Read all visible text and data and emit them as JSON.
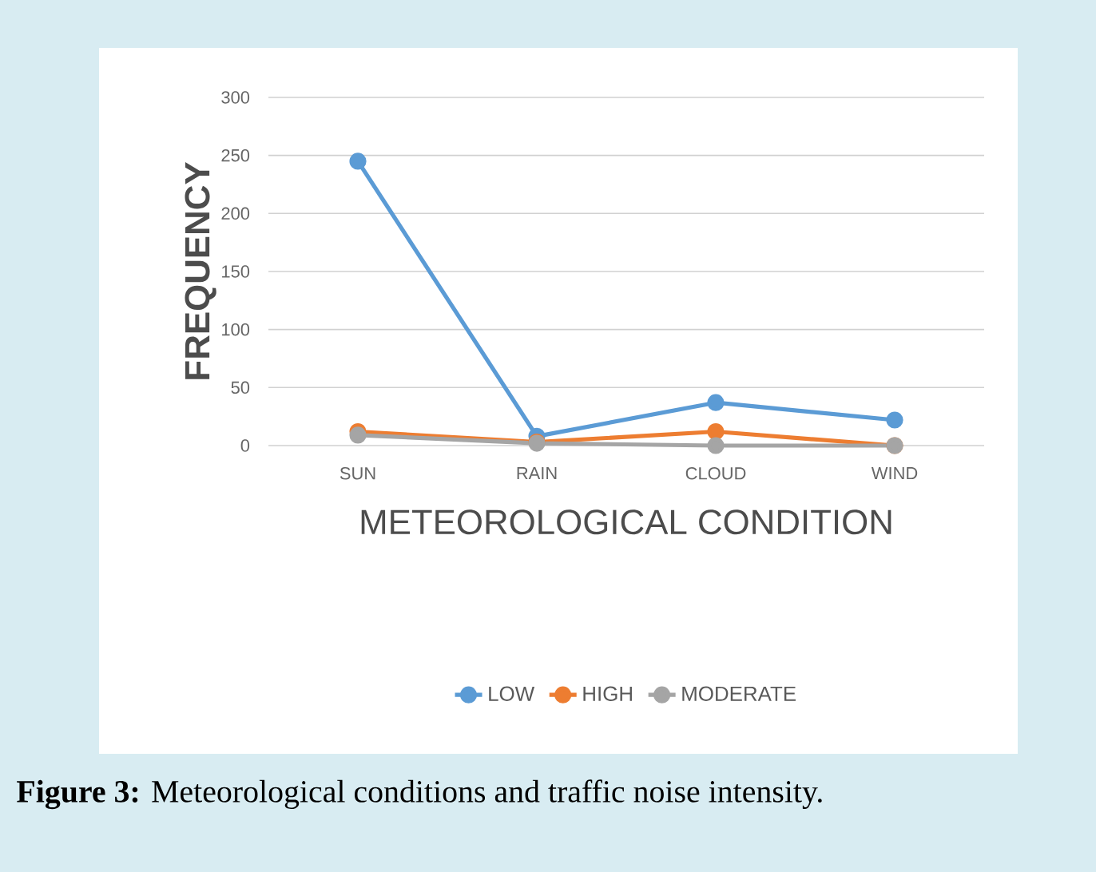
{
  "chart_data": {
    "type": "line",
    "xlabel": "METEOROLOGICAL CONDITION",
    "ylabel": "FREQUENCY",
    "categories": [
      "SUN",
      "RAIN",
      "CLOUD",
      "WIND"
    ],
    "series": [
      {
        "name": "LOW",
        "color": "#5b9bd5",
        "values": [
          245,
          8,
          37,
          22
        ]
      },
      {
        "name": "HIGH",
        "color": "#ed7d31",
        "values": [
          12,
          3,
          12,
          0
        ]
      },
      {
        "name": "MODERATE",
        "color": "#a5a5a5",
        "values": [
          9,
          2,
          0,
          0
        ]
      }
    ],
    "ylim": [
      0,
      300
    ],
    "yticks": [
      0,
      50,
      100,
      150,
      200,
      250,
      300
    ],
    "grid": "y",
    "legend": "bottom",
    "marker": "circle",
    "line_style": "solid",
    "annotations": [
      "**Figure 3:** Meteorological conditions and traffic noise intensity."
    ]
  }
}
